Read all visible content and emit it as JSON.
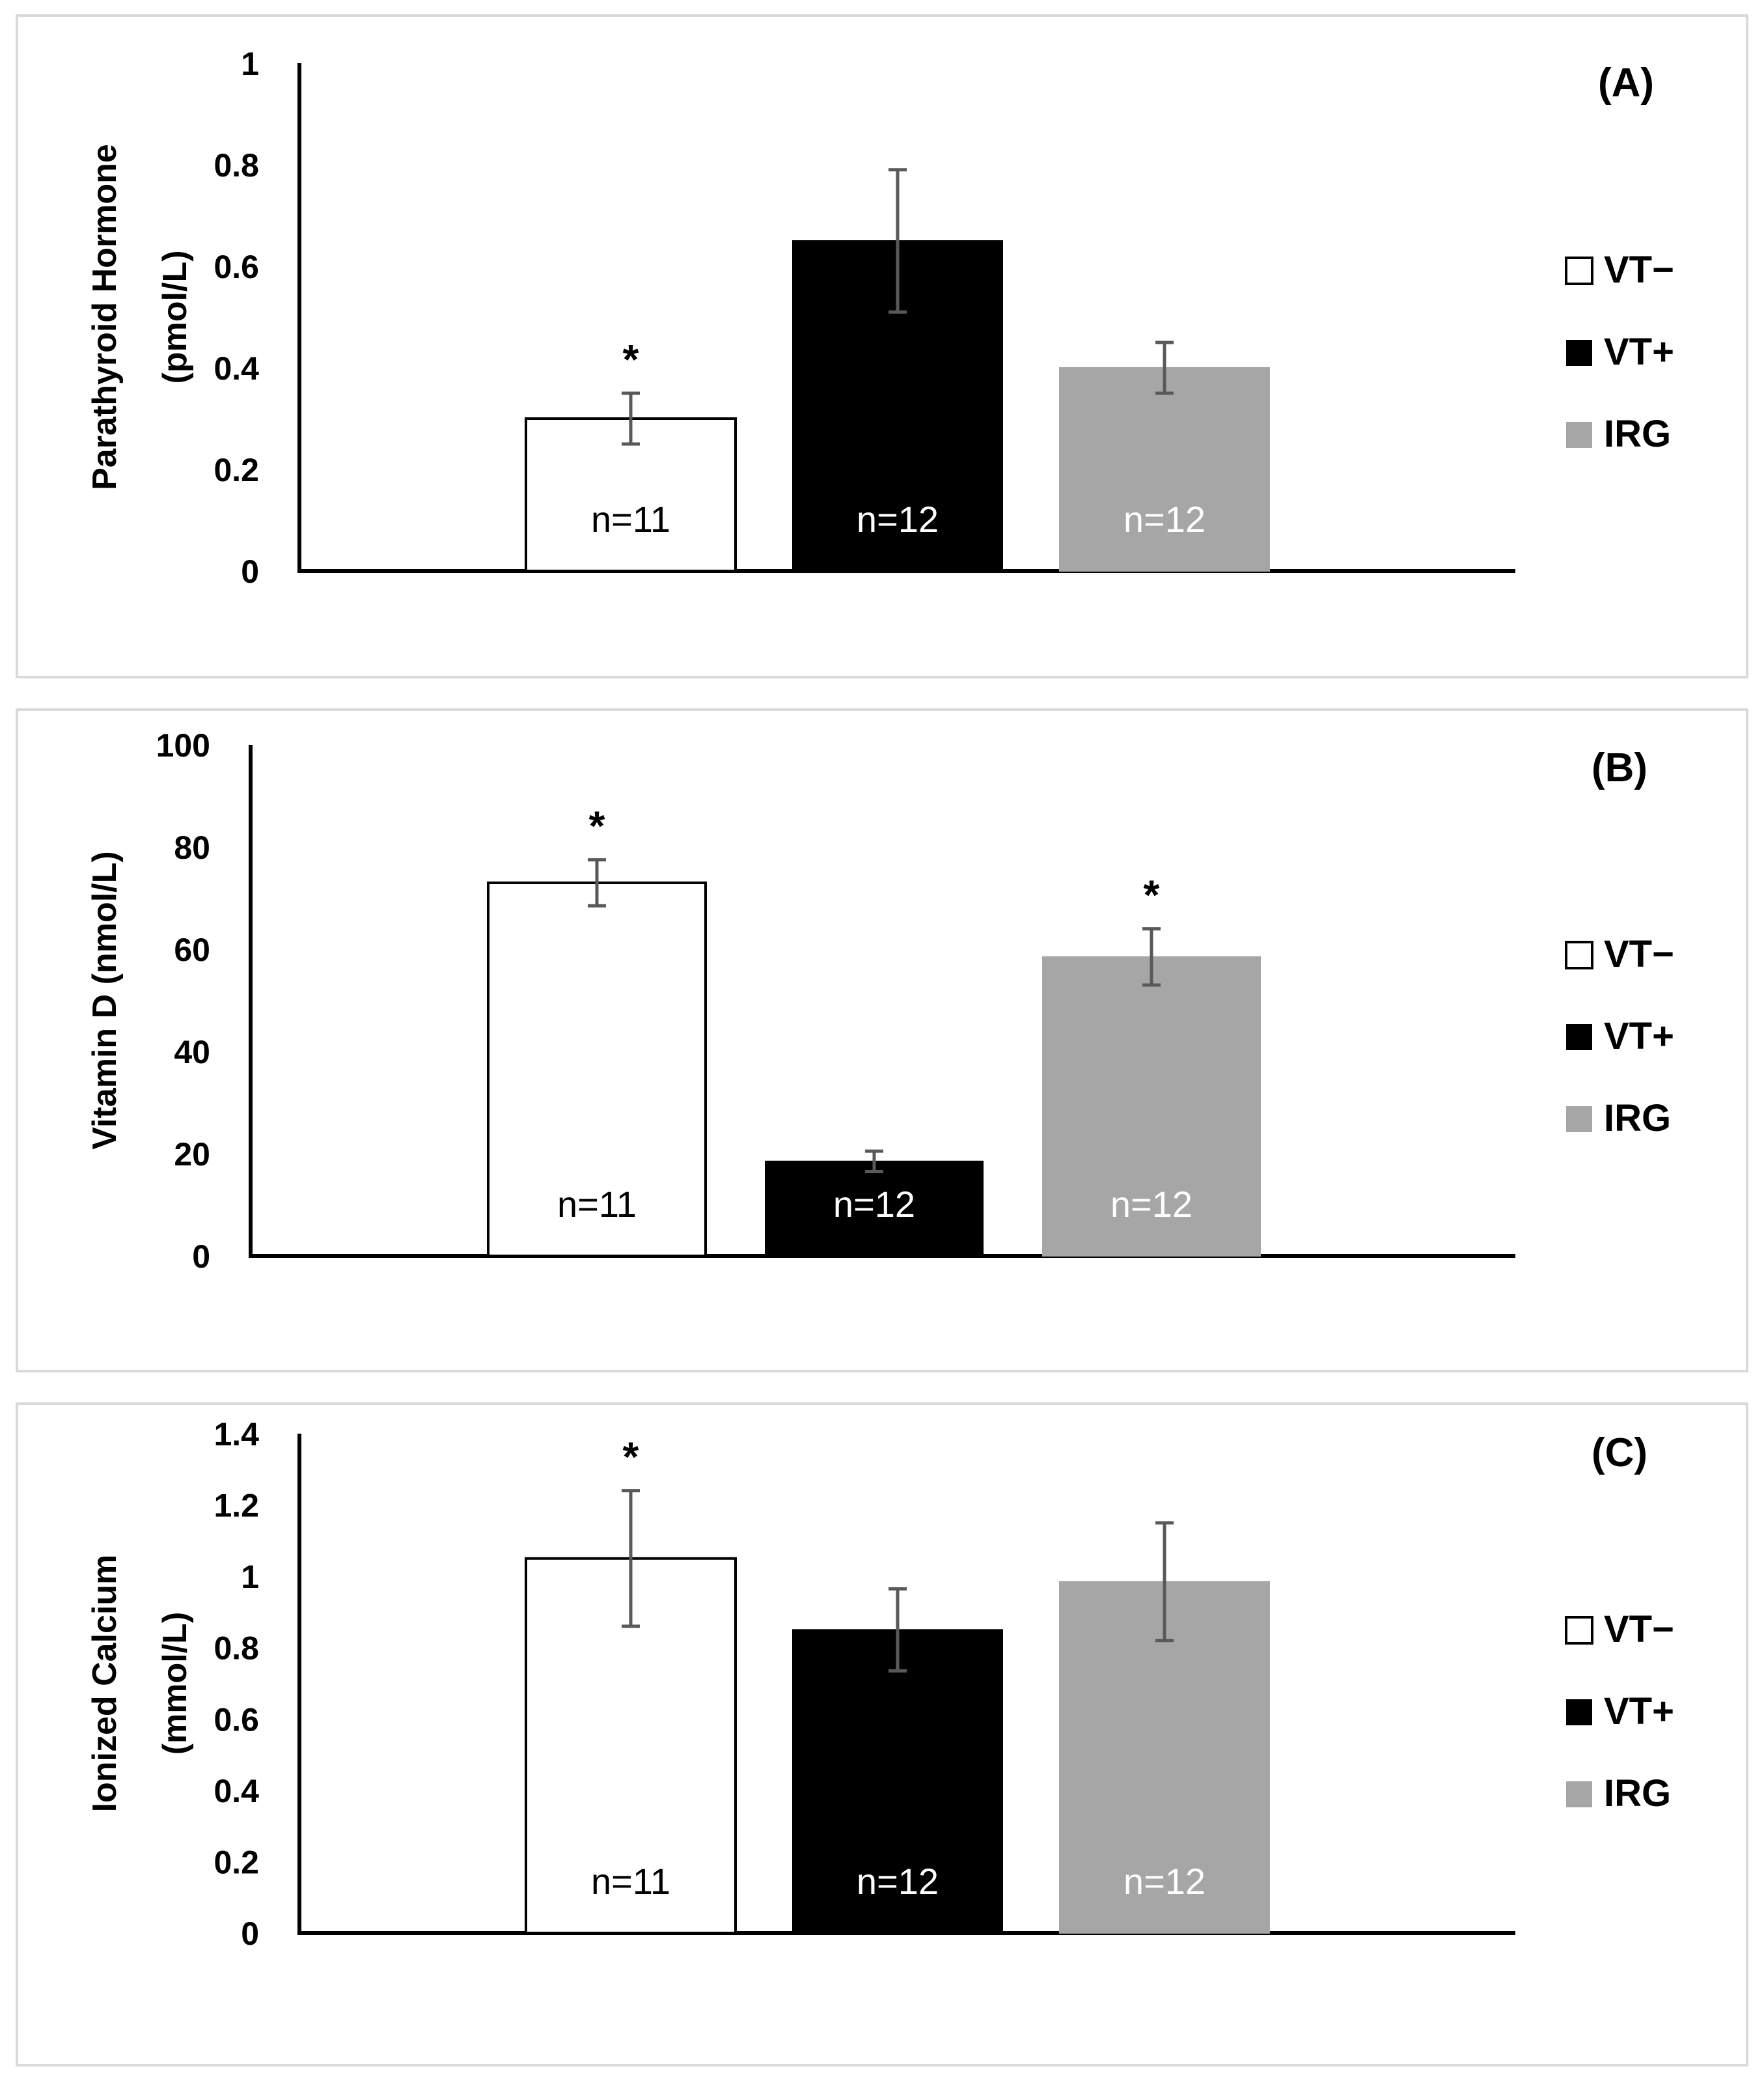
{
  "legend_labels": [
    "VT−",
    "VT+",
    "IRG"
  ],
  "series_colors": [
    "#ffffff",
    "#000000",
    "#a6a6a6"
  ],
  "chart_data": [
    {
      "type": "bar",
      "panel_label": "(A)",
      "ylabel_lines": [
        "Parathyroid Hormone",
        "(pmol/L)"
      ],
      "categories": [
        "VT−",
        "VT+",
        "IRG"
      ],
      "values": [
        0.3,
        0.65,
        0.4
      ],
      "errors": [
        0.05,
        0.14,
        0.05
      ],
      "n_labels": [
        "n=11",
        "n=12",
        "n=12"
      ],
      "significance": [
        "*",
        "",
        ""
      ],
      "ylim": [
        0,
        1
      ],
      "yticks": [
        0,
        0.2,
        0.4,
        0.6,
        0.8,
        1
      ],
      "ytick_labels": [
        "0",
        "0.2",
        "0.4",
        "0.6",
        "0.8",
        "1"
      ],
      "legend": [
        "VT−",
        "VT+",
        "IRG"
      ]
    },
    {
      "type": "bar",
      "panel_label": "(B)",
      "ylabel_lines": [
        "Vitamin D (nmol/L)"
      ],
      "categories": [
        "VT−",
        "VT+",
        "IRG"
      ],
      "values": [
        73,
        18.5,
        58.5
      ],
      "errors": [
        4.5,
        2,
        5.5
      ],
      "n_labels": [
        "n=11",
        "n=12",
        "n=12"
      ],
      "significance": [
        "*",
        "",
        "*"
      ],
      "ylim": [
        0,
        100
      ],
      "yticks": [
        0,
        20,
        40,
        60,
        80,
        100
      ],
      "ytick_labels": [
        "0",
        "20",
        "40",
        "60",
        "80",
        "100"
      ],
      "legend": [
        "VT−",
        "VT+",
        "IRG"
      ]
    },
    {
      "type": "bar",
      "panel_label": "(C)",
      "ylabel_lines": [
        "Ionized Calcium",
        "(mmol/L)"
      ],
      "categories": [
        "VT−",
        "VT+",
        "IRG"
      ],
      "values": [
        1.05,
        0.85,
        0.985
      ],
      "errors": [
        0.19,
        0.115,
        0.165
      ],
      "n_labels": [
        "n=11",
        "n=12",
        "n=12"
      ],
      "significance": [
        "*",
        "",
        ""
      ],
      "ylim": [
        0,
        1.4
      ],
      "yticks": [
        0,
        0.2,
        0.4,
        0.6,
        0.8,
        1,
        1.2,
        1.4
      ],
      "ytick_labels": [
        "0",
        "0.2",
        "0.4",
        "0.6",
        "0.8",
        "1",
        "1.2",
        "1.4"
      ],
      "legend": [
        "VT−",
        "VT+",
        "IRG"
      ]
    }
  ]
}
